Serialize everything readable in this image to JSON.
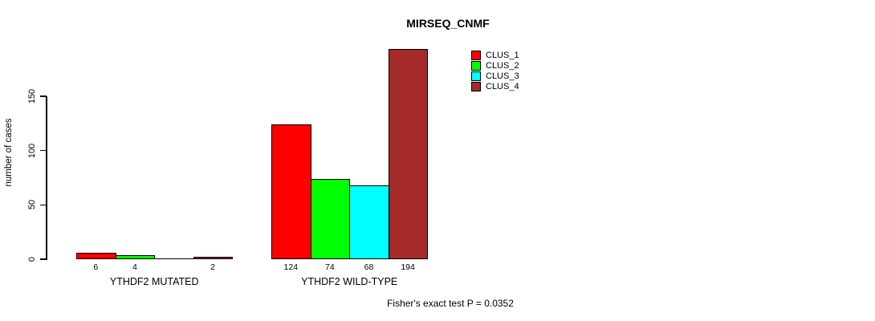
{
  "title": "MIRSEQ_CNMF",
  "footnote": "Fisher's exact test P = 0.0352",
  "chart_data": {
    "type": "bar",
    "title": "MIRSEQ_CNMF",
    "xlabel": "",
    "ylabel": "number of cases",
    "ylim": [
      0,
      150
    ],
    "yticks": [
      0,
      50,
      100,
      150
    ],
    "grid": false,
    "legend_position": "top-right",
    "annotation": "Fisher's exact test P = 0.0352",
    "categories": [
      "YTHDF2 MUTATED",
      "YTHDF2 WILD-TYPE"
    ],
    "series": [
      {
        "name": "CLUS_1",
        "color": "#FF0000",
        "values": [
          6,
          124
        ]
      },
      {
        "name": "CLUS_2",
        "color": "#00FF00",
        "values": [
          4,
          74
        ]
      },
      {
        "name": "CLUS_3",
        "color": "#00FFFF",
        "values": [
          0,
          68
        ]
      },
      {
        "name": "CLUS_4",
        "color": "#A52A2A",
        "values": [
          2,
          194
        ]
      }
    ],
    "bar_value_labels": [
      [
        "6",
        "4",
        "",
        "2"
      ],
      [
        "124",
        "74",
        "68",
        "194"
      ]
    ]
  }
}
